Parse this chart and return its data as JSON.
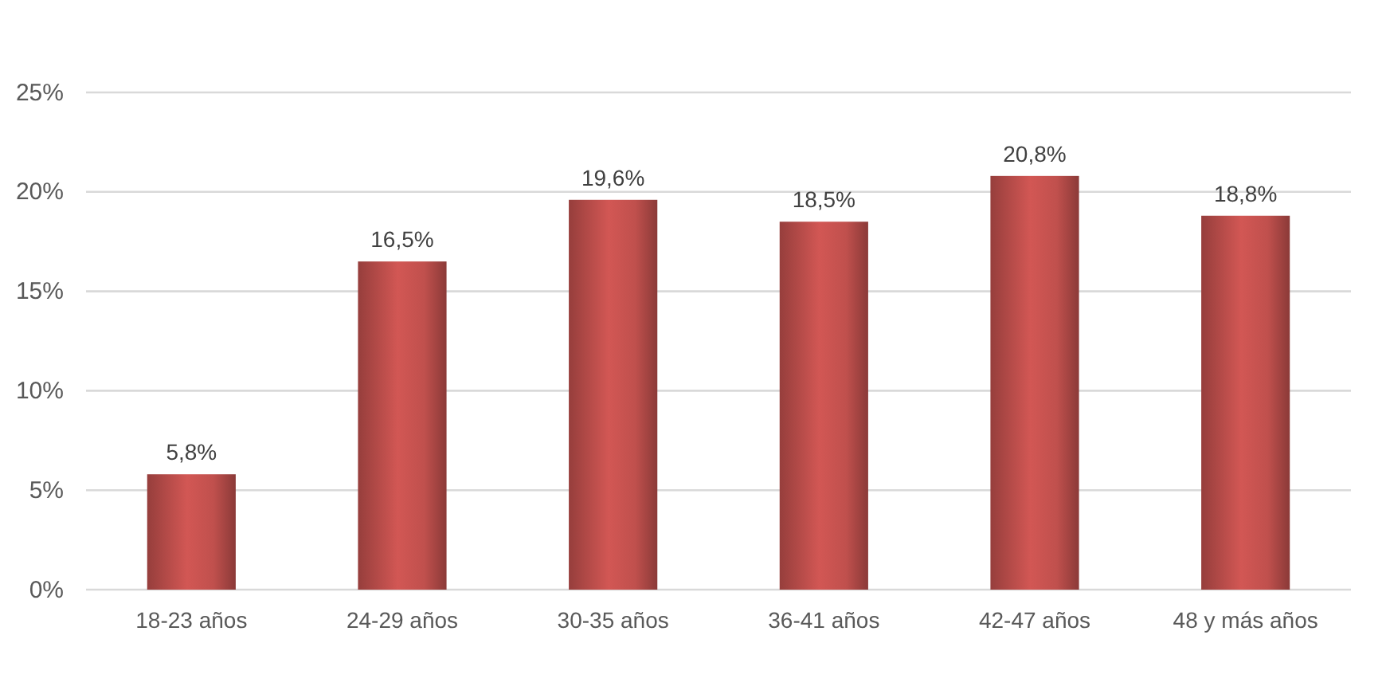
{
  "chart_data": {
    "type": "bar",
    "categories": [
      "18-23 años",
      "24-29 años",
      "30-35 años",
      "36-41 años",
      "42-47 años",
      "48 y más años"
    ],
    "values": [
      5.8,
      16.5,
      19.6,
      18.5,
      20.8,
      18.8
    ],
    "value_labels": [
      "5,8%",
      "16,5%",
      "19,6%",
      "18,5%",
      "20,8%",
      "18,8%"
    ],
    "color": "#c0504d",
    "ylim": [
      0,
      25
    ],
    "yticks": [
      {
        "value": 0,
        "label": "0%"
      },
      {
        "value": 5,
        "label": "5%"
      },
      {
        "value": 10,
        "label": "10%"
      },
      {
        "value": 15,
        "label": "15%"
      },
      {
        "value": 20,
        "label": "20%"
      },
      {
        "value": 25,
        "label": "25%"
      }
    ],
    "grid": "y"
  }
}
